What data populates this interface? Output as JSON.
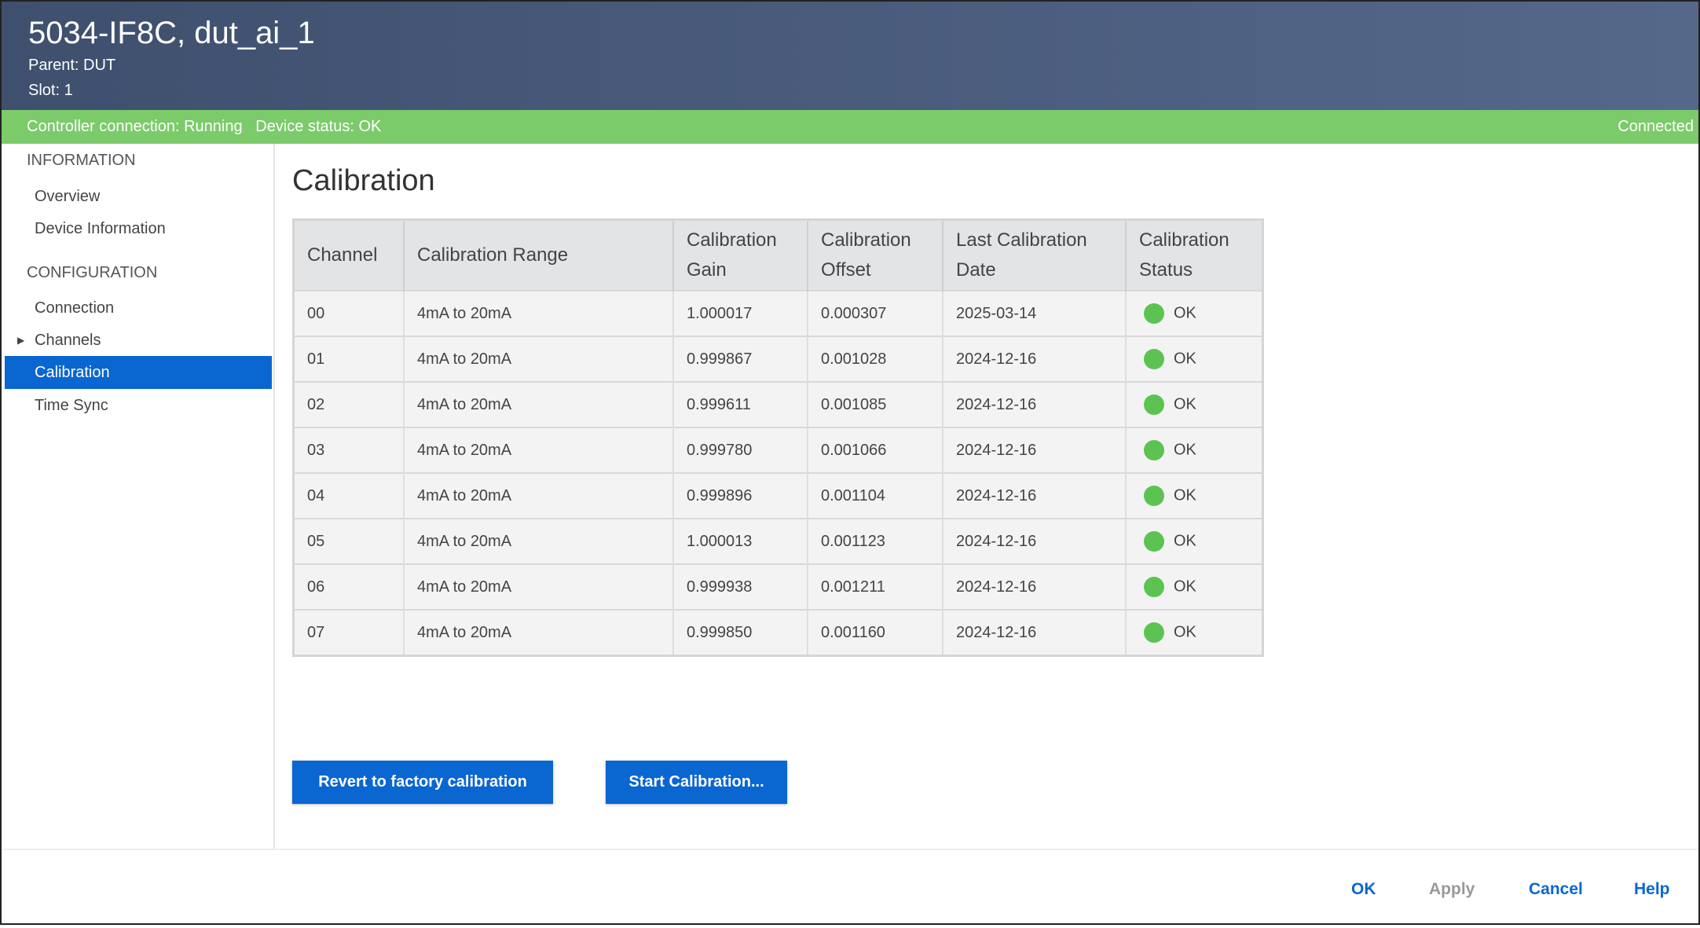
{
  "header": {
    "title": "5034-IF8C, dut_ai_1",
    "parent": "Parent:  DUT",
    "slot": "Slot:  1"
  },
  "status": {
    "left": "Controller connection: Running   Device status: OK",
    "right": "Connected",
    "color": "#7ccb6b"
  },
  "sidebar": {
    "sections": [
      "INFORMATION",
      "CONFIGURATION"
    ],
    "items": [
      {
        "label": "Overview"
      },
      {
        "label": "Device Information"
      },
      {
        "label": "Connection"
      },
      {
        "label": "Channels",
        "icon": "triangle-right-icon"
      },
      {
        "label": "Calibration",
        "active": true
      },
      {
        "label": "Time Sync"
      }
    ]
  },
  "main": {
    "title": "Calibration",
    "columns": [
      "Channel",
      "Calibration Range",
      "Calibration Gain",
      "Calibration Offset",
      "Last Calibration Date",
      "Calibration Status"
    ],
    "rows": [
      [
        "00",
        "4mA to 20mA",
        "1.000017",
        "0.000307",
        "2025-03-14",
        "OK"
      ],
      [
        "01",
        "4mA to 20mA",
        "0.999867",
        "0.001028",
        "2024-12-16",
        "OK"
      ],
      [
        "02",
        "4mA to 20mA",
        "0.999611",
        "0.001085",
        "2024-12-16",
        "OK"
      ],
      [
        "03",
        "4mA to 20mA",
        "0.999780",
        "0.001066",
        "2024-12-16",
        "OK"
      ],
      [
        "04",
        "4mA to 20mA",
        "0.999896",
        "0.001104",
        "2024-12-16",
        "OK"
      ],
      [
        "05",
        "4mA to 20mA",
        "1.000013",
        "0.001123",
        "2024-12-16",
        "OK"
      ],
      [
        "06",
        "4mA to 20mA",
        "0.999938",
        "0.001211",
        "2024-12-16",
        "OK"
      ],
      [
        "07",
        "4mA to 20mA",
        "0.999850",
        "0.001160",
        "2024-12-16",
        "OK"
      ]
    ],
    "revert_label": "Revert to factory calibration",
    "start_label": "Start Calibration..."
  },
  "footer": {
    "ok": "OK",
    "apply": "Apply",
    "cancel": "Cancel",
    "help": "Help",
    "accent": "#0a66d1",
    "disabled": "#999999"
  }
}
